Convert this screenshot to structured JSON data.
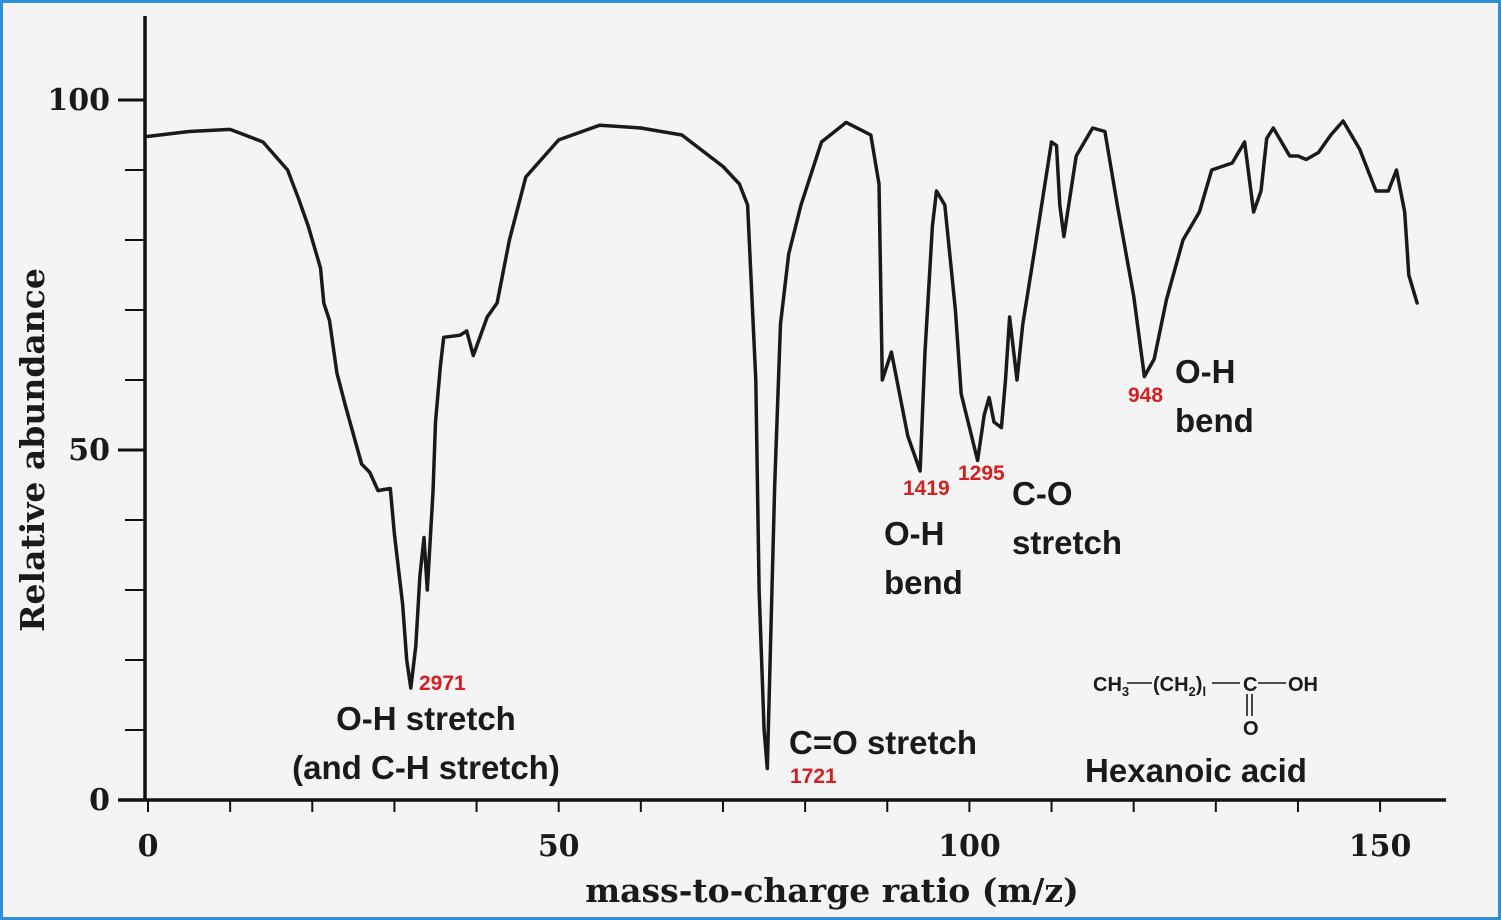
{
  "chart_data": {
    "type": "line",
    "xlabel": "mass-to-charge ratio (m/z)",
    "ylabel": "Relative abundance",
    "xlim": [
      0,
      158
    ],
    "ylim": [
      0,
      100
    ],
    "x_ticks": [
      0,
      50,
      100,
      150
    ],
    "y_ticks": [
      0,
      50,
      100
    ],
    "grid": false,
    "line_color": "#1a1a1a",
    "series": [
      {
        "values": [
          [
            0,
            94.8
          ],
          [
            5,
            95.5
          ],
          [
            10,
            95.8
          ],
          [
            14,
            94
          ],
          [
            17,
            90
          ],
          [
            18.3,
            86
          ],
          [
            19.5,
            82
          ],
          [
            20.5,
            78
          ],
          [
            21,
            76
          ],
          [
            21.4,
            71
          ],
          [
            22.1,
            68.5
          ],
          [
            23,
            61
          ],
          [
            24,
            56.5
          ],
          [
            26,
            48
          ],
          [
            27,
            46.8
          ],
          [
            28,
            44.2
          ],
          [
            29.5,
            44.5
          ],
          [
            30,
            38
          ],
          [
            31,
            28
          ],
          [
            31.5,
            20
          ],
          [
            32,
            16
          ],
          [
            32.6,
            22
          ],
          [
            33.1,
            32
          ],
          [
            33.6,
            37.5
          ],
          [
            34,
            30
          ],
          [
            34.7,
            44
          ],
          [
            35,
            54
          ],
          [
            35.6,
            62
          ],
          [
            36,
            66.1
          ],
          [
            38,
            66.4
          ],
          [
            38.8,
            67
          ],
          [
            39.6,
            63.5
          ],
          [
            41.3,
            69
          ],
          [
            42.5,
            71
          ],
          [
            44,
            80
          ],
          [
            46,
            89
          ],
          [
            50,
            94.3
          ],
          [
            55,
            96.4
          ],
          [
            60,
            96
          ],
          [
            65,
            95
          ],
          [
            70,
            90.5
          ],
          [
            72,
            88
          ],
          [
            73,
            85
          ],
          [
            74,
            60
          ],
          [
            74.4,
            30
          ],
          [
            75,
            10
          ],
          [
            75.4,
            4.5
          ],
          [
            76.3,
            45
          ],
          [
            77,
            68
          ],
          [
            78,
            78
          ],
          [
            79.5,
            85
          ],
          [
            82,
            94
          ],
          [
            85,
            96.8
          ],
          [
            88,
            95
          ],
          [
            89,
            88
          ],
          [
            89.4,
            60
          ],
          [
            90.5,
            64
          ],
          [
            92.5,
            52
          ],
          [
            94,
            47
          ],
          [
            94.6,
            64
          ],
          [
            95.5,
            82
          ],
          [
            96,
            87
          ],
          [
            97,
            85
          ],
          [
            98.3,
            70
          ],
          [
            99,
            58
          ],
          [
            101,
            48.5
          ],
          [
            101.8,
            55
          ],
          [
            102.4,
            57.5
          ],
          [
            103,
            54
          ],
          [
            103.9,
            53.2
          ],
          [
            104.4,
            60
          ],
          [
            104.9,
            69
          ],
          [
            105.8,
            60
          ],
          [
            106.5,
            68
          ],
          [
            108,
            79
          ],
          [
            110,
            94
          ],
          [
            110.6,
            93.5
          ],
          [
            111,
            85
          ],
          [
            111.5,
            80.5
          ],
          [
            113,
            92
          ],
          [
            115,
            96
          ],
          [
            116.5,
            95.5
          ],
          [
            118,
            85
          ],
          [
            120,
            72
          ],
          [
            121.3,
            60.5
          ],
          [
            122.5,
            63
          ],
          [
            124,
            71.5
          ],
          [
            126,
            80
          ],
          [
            128,
            84
          ],
          [
            129.5,
            90
          ],
          [
            132,
            91
          ],
          [
            133.5,
            94
          ],
          [
            134.6,
            84
          ],
          [
            135.5,
            87
          ],
          [
            136.2,
            94.5
          ],
          [
            137,
            96
          ],
          [
            138,
            94
          ],
          [
            139,
            92
          ],
          [
            140,
            92
          ],
          [
            141,
            91.5
          ],
          [
            142.5,
            92.5
          ],
          [
            144,
            95
          ],
          [
            145.5,
            97
          ],
          [
            147.5,
            93
          ],
          [
            149.5,
            87
          ],
          [
            151,
            87
          ],
          [
            152,
            90
          ],
          [
            153,
            84
          ],
          [
            153.5,
            75
          ],
          [
            154.5,
            71
          ]
        ]
      }
    ],
    "peak_labels": [
      {
        "text": "2971",
        "x": 32,
        "y": 16
      },
      {
        "text": "1721",
        "x": 75.4,
        "y": 4.5
      },
      {
        "text": "1419",
        "x": 94,
        "y": 47
      },
      {
        "text": "1295",
        "x": 101,
        "y": 48.5
      },
      {
        "text": "948",
        "x": 121.3,
        "y": 60.5
      }
    ],
    "annotations": [
      {
        "lines": [
          "O-H stretch",
          "(and C-H stretch)"
        ]
      },
      {
        "lines": [
          "C=O stretch"
        ]
      },
      {
        "lines": [
          "O-H",
          "bend"
        ]
      },
      {
        "lines": [
          "C-O",
          "stretch"
        ]
      },
      {
        "lines": [
          "O-H",
          "bend"
        ]
      }
    ],
    "peak_label_color": "#d42020",
    "compound": {
      "formula_parts": [
        "CH",
        "3",
        "(CH",
        "2",
        ")",
        "l",
        "C",
        "OH",
        "O"
      ],
      "name": "Hexanoic acid"
    },
    "frame_color": "#2f8fd6"
  }
}
